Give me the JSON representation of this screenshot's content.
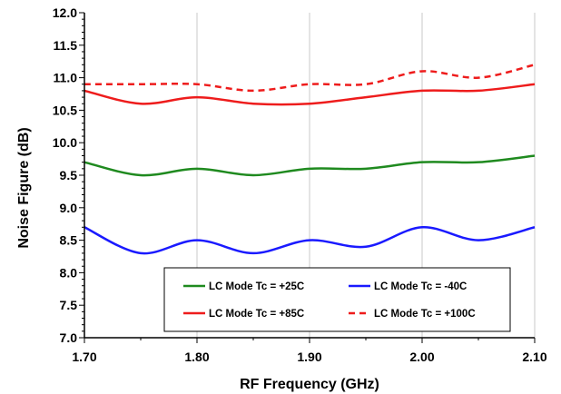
{
  "chart_data": {
    "type": "line",
    "title": "",
    "xlabel": "RF Frequency (GHz)",
    "ylabel": "Noise Figure (dB)",
    "xlim": [
      1.7,
      2.1
    ],
    "ylim": [
      7.0,
      12.0
    ],
    "x_ticks": [
      "1.70",
      "1.80",
      "1.90",
      "2.00",
      "2.10"
    ],
    "y_ticks": [
      "7.0",
      "7.5",
      "8.0",
      "8.5",
      "9.0",
      "9.5",
      "10.0",
      "10.5",
      "11.0",
      "11.5",
      "12.0"
    ],
    "grid": "vertical",
    "legend_position": "bottom-center",
    "x": [
      1.7,
      1.75,
      1.8,
      1.85,
      1.9,
      1.95,
      2.0,
      2.05,
      2.1
    ],
    "series": [
      {
        "name": "LC Mode Tc = +25C",
        "color": "#1f8a1f",
        "dash": "solid",
        "values": [
          9.7,
          9.5,
          9.6,
          9.5,
          9.6,
          9.6,
          9.7,
          9.7,
          9.8
        ]
      },
      {
        "name": "LC Mode Tc = -40C",
        "color": "#1a1aff",
        "dash": "solid",
        "values": [
          8.7,
          8.3,
          8.5,
          8.3,
          8.5,
          8.4,
          8.7,
          8.5,
          8.7
        ]
      },
      {
        "name": "LC Mode Tc = +85C",
        "color": "#ee1c1c",
        "dash": "solid",
        "values": [
          10.8,
          10.6,
          10.7,
          10.6,
          10.6,
          10.7,
          10.8,
          10.8,
          10.9
        ]
      },
      {
        "name": "LC Mode Tc = +100C",
        "color": "#ee1c1c",
        "dash": "dashed",
        "values": [
          10.9,
          10.9,
          10.9,
          10.8,
          10.9,
          10.9,
          11.1,
          11.0,
          11.2
        ]
      }
    ]
  }
}
